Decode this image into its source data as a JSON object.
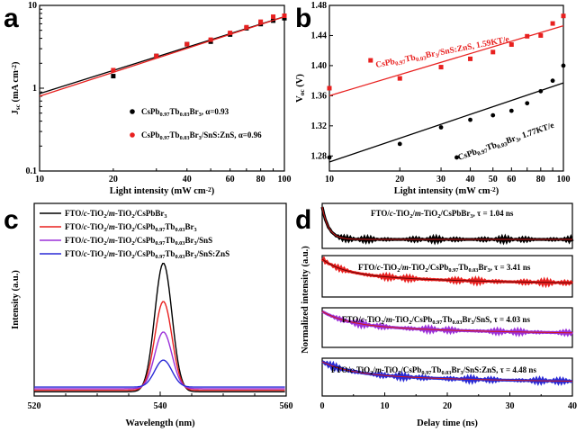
{
  "panels": {
    "a": {
      "letter": "a"
    },
    "b": {
      "letter": "b"
    },
    "c": {
      "letter": "c"
    },
    "d": {
      "letter": "d"
    }
  },
  "chart_data": [
    {
      "panel": "a",
      "type": "scatter",
      "xscale": "log",
      "yscale": "log",
      "xlim": [
        10,
        100
      ],
      "ylim": [
        0.1,
        10
      ],
      "xlabel": "Light intensity (mW cm⁻²)",
      "ylabel": "Jₛᴄ (mA cm⁻²)",
      "xticks": [
        "10",
        "20",
        "40",
        "60",
        "80",
        "100"
      ],
      "yticks": [
        "0.1",
        "1",
        "10"
      ],
      "legend_position": "bottom-right",
      "series": [
        {
          "name": "CsPb0.97Tb0.03Br3, α=0.93",
          "color": "#000000",
          "x": [
            20,
            30,
            40,
            50,
            60,
            70,
            80,
            90,
            100
          ],
          "y": [
            1.4,
            2.45,
            3.4,
            3.65,
            4.45,
            5.3,
            5.95,
            6.55,
            7.0
          ],
          "fit": {
            "alpha": 0.93,
            "y_at_10": 0.86
          }
        },
        {
          "name": "CsPb0.97Tb0.03Br3/SnS:ZnS, α=0.96",
          "color": "#e8201f",
          "x": [
            20,
            30,
            40,
            50,
            60,
            70,
            80,
            90,
            100
          ],
          "y": [
            1.65,
            2.45,
            3.4,
            3.85,
            4.65,
            5.45,
            6.35,
            7.3,
            7.5
          ],
          "fit": {
            "alpha": 0.96,
            "y_at_10": 0.8
          }
        }
      ]
    },
    {
      "panel": "b",
      "type": "scatter",
      "xscale": "log",
      "xlim": [
        10,
        100
      ],
      "ylim": [
        1.26,
        1.48
      ],
      "xlabel": "Light intensity (mW cm⁻²)",
      "ylabel": "Vₒᴄ (V)",
      "xticks": [
        "10",
        "20",
        "30",
        "40",
        "50",
        "60",
        "80",
        "100"
      ],
      "yticks": [
        "1.28",
        "1.32",
        "1.36",
        "1.40",
        "1.44",
        "1.48"
      ],
      "series": [
        {
          "name": "CsPb0.97Tb0.03Br3/SnS:ZnS",
          "annotation": "CsPb0.97Tb0.03Br3/SnS:ZnS, 1.59KT/e",
          "color": "#e8201f",
          "x": [
            10,
            15,
            20,
            30,
            40,
            50,
            60,
            70,
            80,
            90,
            100
          ],
          "y": [
            1.37,
            1.407,
            1.383,
            1.398,
            1.409,
            1.418,
            1.428,
            1.439,
            1.44,
            1.456,
            1.466
          ],
          "fit": [
            [
              10,
              1.36
            ],
            [
              100,
              1.453
            ]
          ]
        },
        {
          "name": "CsPb0.97Tb0.03Br3",
          "annotation": "CsPb0.97Tb0.03Br3, 1.77KT/e",
          "color": "#000000",
          "x": [
            10,
            20,
            30,
            35,
            40,
            50,
            60,
            70,
            80,
            90,
            100
          ],
          "y": [
            1.278,
            1.296,
            1.318,
            1.278,
            1.328,
            1.334,
            1.34,
            1.35,
            1.366,
            1.38,
            1.4
          ],
          "fit": [
            [
              10,
              1.272
            ],
            [
              100,
              1.377
            ]
          ]
        }
      ]
    },
    {
      "panel": "c",
      "type": "line",
      "xlim": [
        520,
        560
      ],
      "xlabel": "Wavelength (nm)",
      "ylabel": "Intensity (a.u.)",
      "xticks": [
        "520",
        "540",
        "560"
      ],
      "peak_nm": 540.5,
      "fwhm_nm": 3.2,
      "legend_position": "top-left",
      "series": [
        {
          "name": "FTO/c-TiO2/m-TiO2/CsPbBr3",
          "color": "#000000",
          "peak": 1.0
        },
        {
          "name": "FTO/c-TiO2/m-TiO2/CsPb0.97Tb0.03Br3",
          "color": "#e8201f",
          "peak": 0.69
        },
        {
          "name": "FTO/c-TiO2/m-TiO2/CsPb0.97Tb0.03Br3/SnS",
          "color": "#9b30d9",
          "peak": 0.44
        },
        {
          "name": "FTO/c-TiO2/m-TiO2/CsPb0.97Tb0.03Br3/SnS:ZnS",
          "color": "#2a2ad6",
          "peak": 0.21
        }
      ]
    },
    {
      "panel": "d",
      "type": "line",
      "xlim": [
        0,
        40
      ],
      "xlabel": "Delay time (ns)",
      "ylabel": "Normalized intensity (a.u.)",
      "xticks": [
        "0",
        "10",
        "20",
        "30",
        "40"
      ],
      "subpanels": [
        {
          "label": "FTO/c-TiO2/m-TiO2/CsPbBr3, τ = 1.04 ns",
          "tau_ns": 1.04,
          "color": "#000000",
          "fit_color": "#d01818"
        },
        {
          "label": "FTO/c-TiO2/m-TiO2/CsPb0.97Tb0.03Br3, τ = 3.41 ns",
          "tau_ns": 3.41,
          "color": "#e8201f",
          "fit_color": "#6a0000"
        },
        {
          "label": "FTO/c-TiO2/m-TiO2/CsPb0.97Tb0.03Br3/SnS, τ = 4.03 ns",
          "tau_ns": 4.03,
          "color": "#9b30d9",
          "fit_color": "#d01818"
        },
        {
          "label": "FTO/c-TiO2/m-TiO2/CsPb0.97Tb0.03Br3/SnS:ZnS, τ = 4.48 ns",
          "tau_ns": 4.48,
          "color": "#2a2ad6",
          "fit_color": "#d01818"
        }
      ]
    }
  ]
}
